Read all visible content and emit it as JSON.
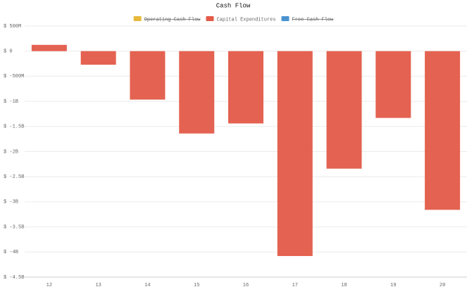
{
  "chart_data": {
    "type": "bar",
    "title": "Cash Flow",
    "categories": [
      "12",
      "13",
      "14",
      "15",
      "16",
      "17",
      "18",
      "19",
      "20"
    ],
    "series": [
      {
        "name": "Operating Cash Flow",
        "color": "#e8b93c",
        "hidden": true
      },
      {
        "name": "Capital Expenditures",
        "color": "#e35a48",
        "values": [
          125000000,
          -270000000,
          -965000000,
          -1640000000,
          -1440000000,
          -4080000000,
          -2340000000,
          -1330000000,
          -3160000000
        ]
      },
      {
        "name": "Free Cash Flow",
        "color": "#4a93cf",
        "hidden": true
      }
    ],
    "ylim": [
      500000000,
      -4500000000
    ],
    "yticks": [
      {
        "value": 500000000,
        "label": "$ 500M"
      },
      {
        "value": 0,
        "label": "$ 0"
      },
      {
        "value": -500000000,
        "label": "$ -500M"
      },
      {
        "value": -1000000000,
        "label": "$ -1B"
      },
      {
        "value": -1500000000,
        "label": "$ -1.5B"
      },
      {
        "value": -2000000000,
        "label": "$ -2B"
      },
      {
        "value": -2500000000,
        "label": "$ -2.5B"
      },
      {
        "value": -3000000000,
        "label": "$ -3B"
      },
      {
        "value": -3500000000,
        "label": "$ -3.5B"
      },
      {
        "value": -4000000000,
        "label": "$ -4B"
      },
      {
        "value": -4500000000,
        "label": "$ -4.5B"
      }
    ],
    "grid": true
  }
}
